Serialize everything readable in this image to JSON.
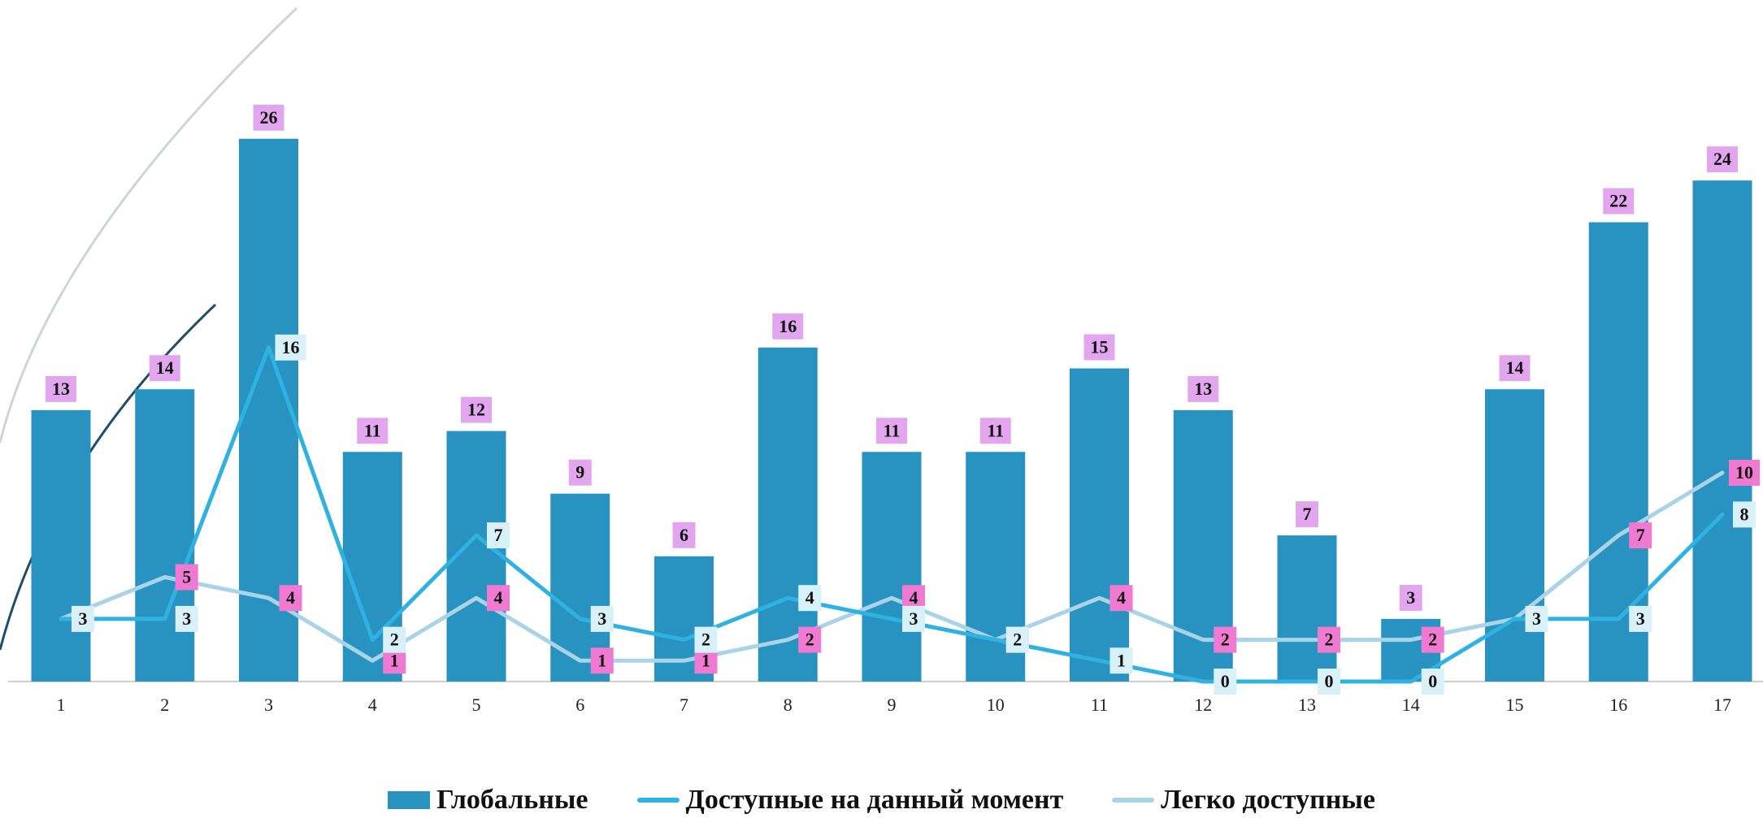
{
  "chart_data": {
    "type": "bar",
    "categories": [
      "1",
      "2",
      "3",
      "4",
      "5",
      "6",
      "7",
      "8",
      "9",
      "10",
      "11",
      "12",
      "13",
      "14",
      "15",
      "16",
      "17"
    ],
    "series": [
      {
        "name": "Глобальные",
        "type": "bar",
        "color": "#2893c0",
        "values": [
          13,
          14,
          26,
          11,
          12,
          9,
          6,
          16,
          11,
          11,
          15,
          13,
          7,
          3,
          14,
          22,
          24
        ]
      },
      {
        "name": "Доступные на данный момент",
        "type": "line",
        "color": "#2fb1e2",
        "values": [
          3,
          3,
          16,
          2,
          7,
          3,
          2,
          4,
          3,
          2,
          1,
          0,
          0,
          0,
          3,
          3,
          8
        ]
      },
      {
        "name": "Легко доступные",
        "type": "line",
        "color": "#aad3e8",
        "values": [
          3,
          5,
          4,
          1,
          4,
          1,
          1,
          2,
          4,
          2,
          4,
          2,
          2,
          2,
          3,
          7,
          10
        ]
      }
    ],
    "ylim": [
      0,
      30
    ],
    "label_colors": {
      "bar_label_bg": "#e2a6ee",
      "available_label_bg": "#d8f1f9",
      "easy_label_bg": "#f07ad2"
    }
  },
  "legend": {
    "bar_label": "Глобальные",
    "line1_label": "Доступные на данный момент",
    "line2_label": "Легко доступные"
  }
}
